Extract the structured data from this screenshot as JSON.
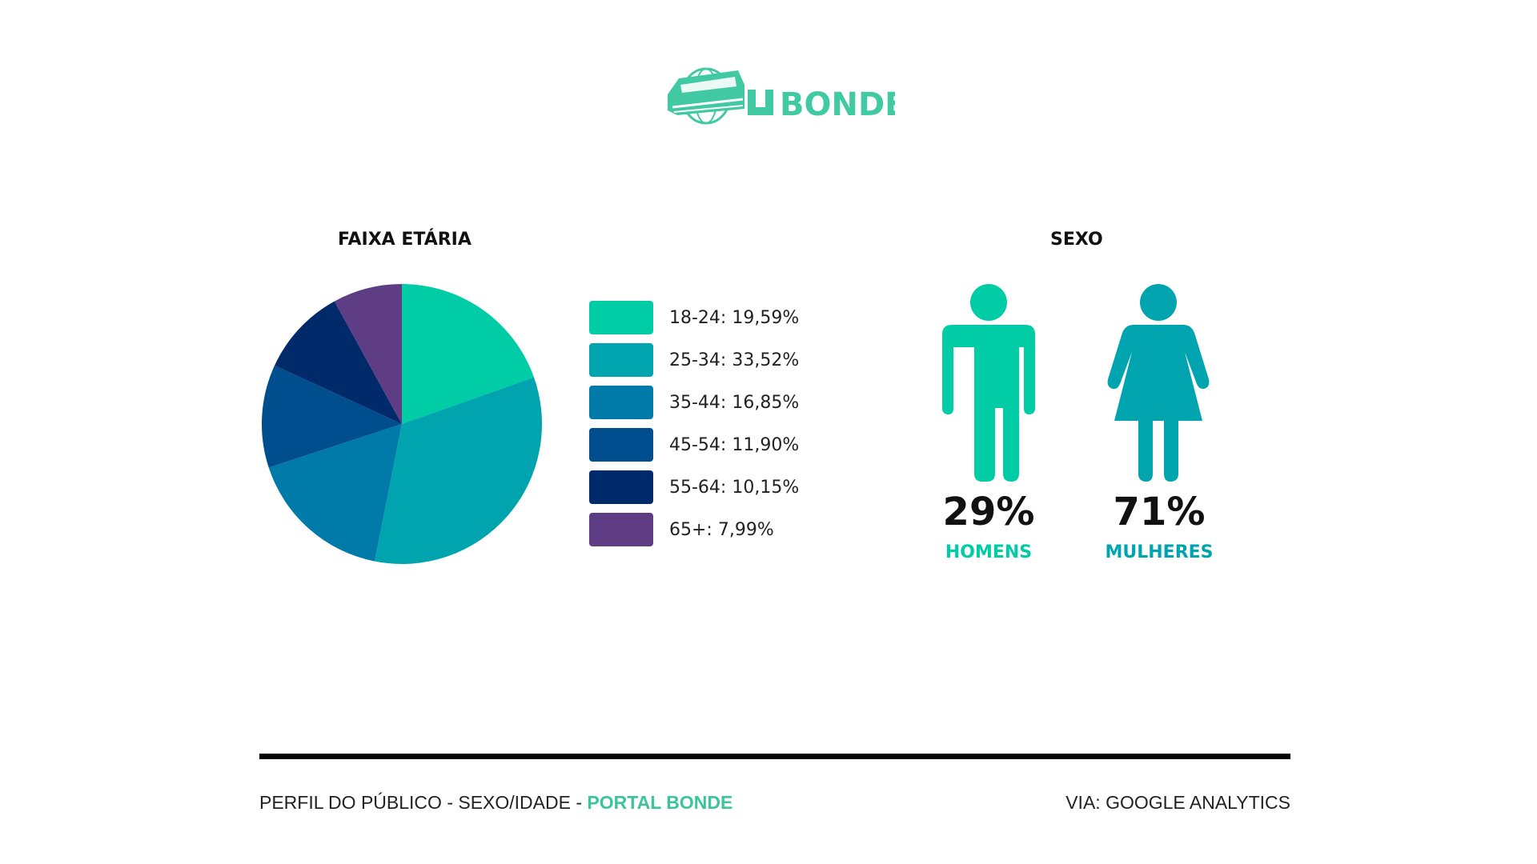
{
  "logo": {
    "text": "BONDE",
    "color": "#40c9a2"
  },
  "age_section": {
    "title": "FAIXA ETÁRIA"
  },
  "gender_section": {
    "title": "SEXO"
  },
  "chart_data": [
    {
      "type": "pie",
      "title": "FAIXA ETÁRIA",
      "categories": [
        "18-24",
        "25-34",
        "35-44",
        "45-54",
        "55-64",
        "65+"
      ],
      "values": [
        19.59,
        33.52,
        16.85,
        11.9,
        10.15,
        7.99
      ],
      "legend_labels": [
        "18-24: 19,59%",
        "25-34: 33,52%",
        "35-44: 16,85%",
        "45-54: 11,90%",
        "55-64: 10,15%",
        "65+: 7,99%"
      ],
      "colors": [
        "#00cca6",
        "#00a4ae",
        "#007aa8",
        "#004e8e",
        "#002a6a",
        "#5e3d85"
      ],
      "legend_placement": "right"
    },
    {
      "type": "pictogram",
      "title": "SEXO",
      "categories": [
        "HOMENS",
        "MULHERES"
      ],
      "values": [
        29,
        71
      ],
      "value_labels": [
        "29%",
        "71%"
      ],
      "colors": [
        "#00cca6",
        "#00a4ae"
      ]
    }
  ],
  "footer": {
    "left_prefix": "PERFIL DO PÚBLICO - SEXO/IDADE - ",
    "left_highlight": "PORTAL BONDE",
    "right": "VIA: GOOGLE ANALYTICS",
    "highlight_color": "#3cc49a"
  }
}
